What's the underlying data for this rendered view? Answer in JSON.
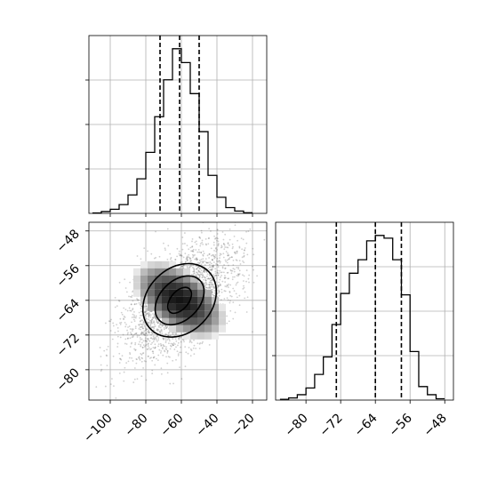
{
  "chart_data": {
    "type": "corner",
    "panels": [
      {
        "id": "marginal-x",
        "type": "histogram",
        "parameter_axis": "x",
        "xlim": [
          -112,
          -12
        ],
        "xticks": [
          -100,
          -80,
          -60,
          -40,
          -20
        ],
        "bin_edges": [
          -110,
          -105,
          -100,
          -95,
          -90,
          -85,
          -80,
          -75,
          -70,
          -65,
          -60,
          -55,
          -50,
          -45,
          -40,
          -35,
          -30,
          -25,
          -20
        ],
        "counts": [
          2,
          8,
          18,
          38,
          80,
          150,
          265,
          420,
          580,
          715,
          655,
          520,
          355,
          165,
          70,
          25,
          10,
          3
        ],
        "quantiles": [
          -72,
          -61,
          -50
        ],
        "grid": true
      },
      {
        "id": "joint",
        "type": "2d-density",
        "xlim": [
          -112,
          -12
        ],
        "ylim": [
          -87,
          -46
        ],
        "xticks": [
          -100,
          -80,
          -60,
          -40,
          -20
        ],
        "yticks": [
          -48,
          -56,
          -64,
          -72,
          -80
        ],
        "center": [
          -61,
          -64
        ],
        "contour_levels": [
          "outer",
          "middle",
          "inner"
        ],
        "grid": true
      },
      {
        "id": "marginal-y",
        "type": "histogram",
        "parameter_axis": "y",
        "xlim": [
          -87,
          -46
        ],
        "xticks": [
          -80,
          -72,
          -64,
          -56,
          -48
        ],
        "bin_edges": [
          -86,
          -84,
          -82,
          -80,
          -78,
          -76,
          -74,
          -72,
          -70,
          -68,
          -66,
          -64,
          -62,
          -60,
          -58,
          -56,
          -54,
          -52,
          -50,
          -48
        ],
        "counts": [
          3,
          8,
          20,
          45,
          95,
          160,
          280,
          395,
          470,
          520,
          590,
          610,
          600,
          520,
          390,
          180,
          50,
          20,
          5
        ],
        "quantiles": [
          -73,
          -64,
          -58
        ],
        "grid": true
      }
    ],
    "labels": [],
    "legend": null
  }
}
